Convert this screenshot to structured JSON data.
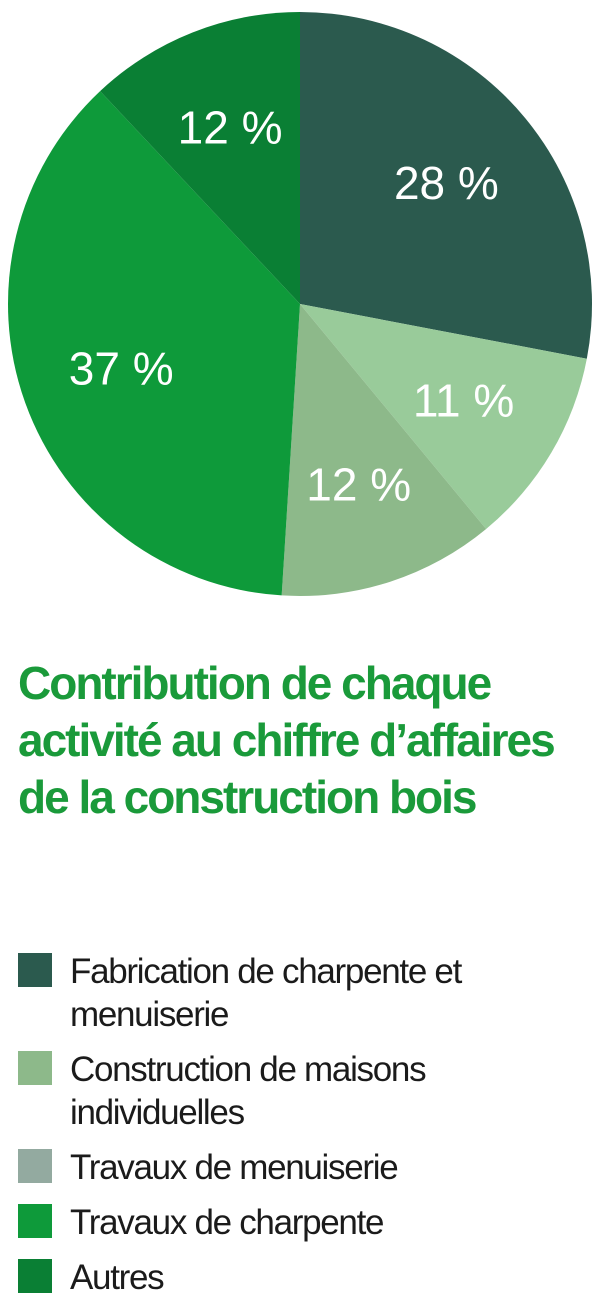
{
  "chart_data": {
    "type": "pie",
    "title": "Contribution de chaque activité au chiffre d’affaires de la construction bois",
    "slices": [
      {
        "label": "Fabrication de charpente et menuiserie",
        "value": 28,
        "value_label": "28 %",
        "color": "#2b5a4e"
      },
      {
        "label": "Construction de maisons individuelles",
        "value": 11,
        "value_label": "11 %",
        "color": "#99cb9a"
      },
      {
        "label": "Travaux de menuiserie",
        "value": 12,
        "value_label": "12 %",
        "color": "#8db98a"
      },
      {
        "label": "Travaux de charpente",
        "value": 37,
        "value_label": "37 %",
        "color": "#0e9a3a"
      },
      {
        "label": "Autres",
        "value": 12,
        "value_label": "12 %",
        "color": "#0a7f34"
      }
    ],
    "legend_placement": "bottom"
  },
  "legend": [
    {
      "label": "Fabrication de charpente et menuiserie",
      "color": "#2b5a4e"
    },
    {
      "label": "Construction de maisons individuelles",
      "color": "#8db98a"
    },
    {
      "label": "Travaux de menuiserie",
      "color": "#93aaa0"
    },
    {
      "label": "Travaux de charpente",
      "color": "#0e9a3a"
    },
    {
      "label": "Autres",
      "color": "#0a7f34"
    }
  ]
}
